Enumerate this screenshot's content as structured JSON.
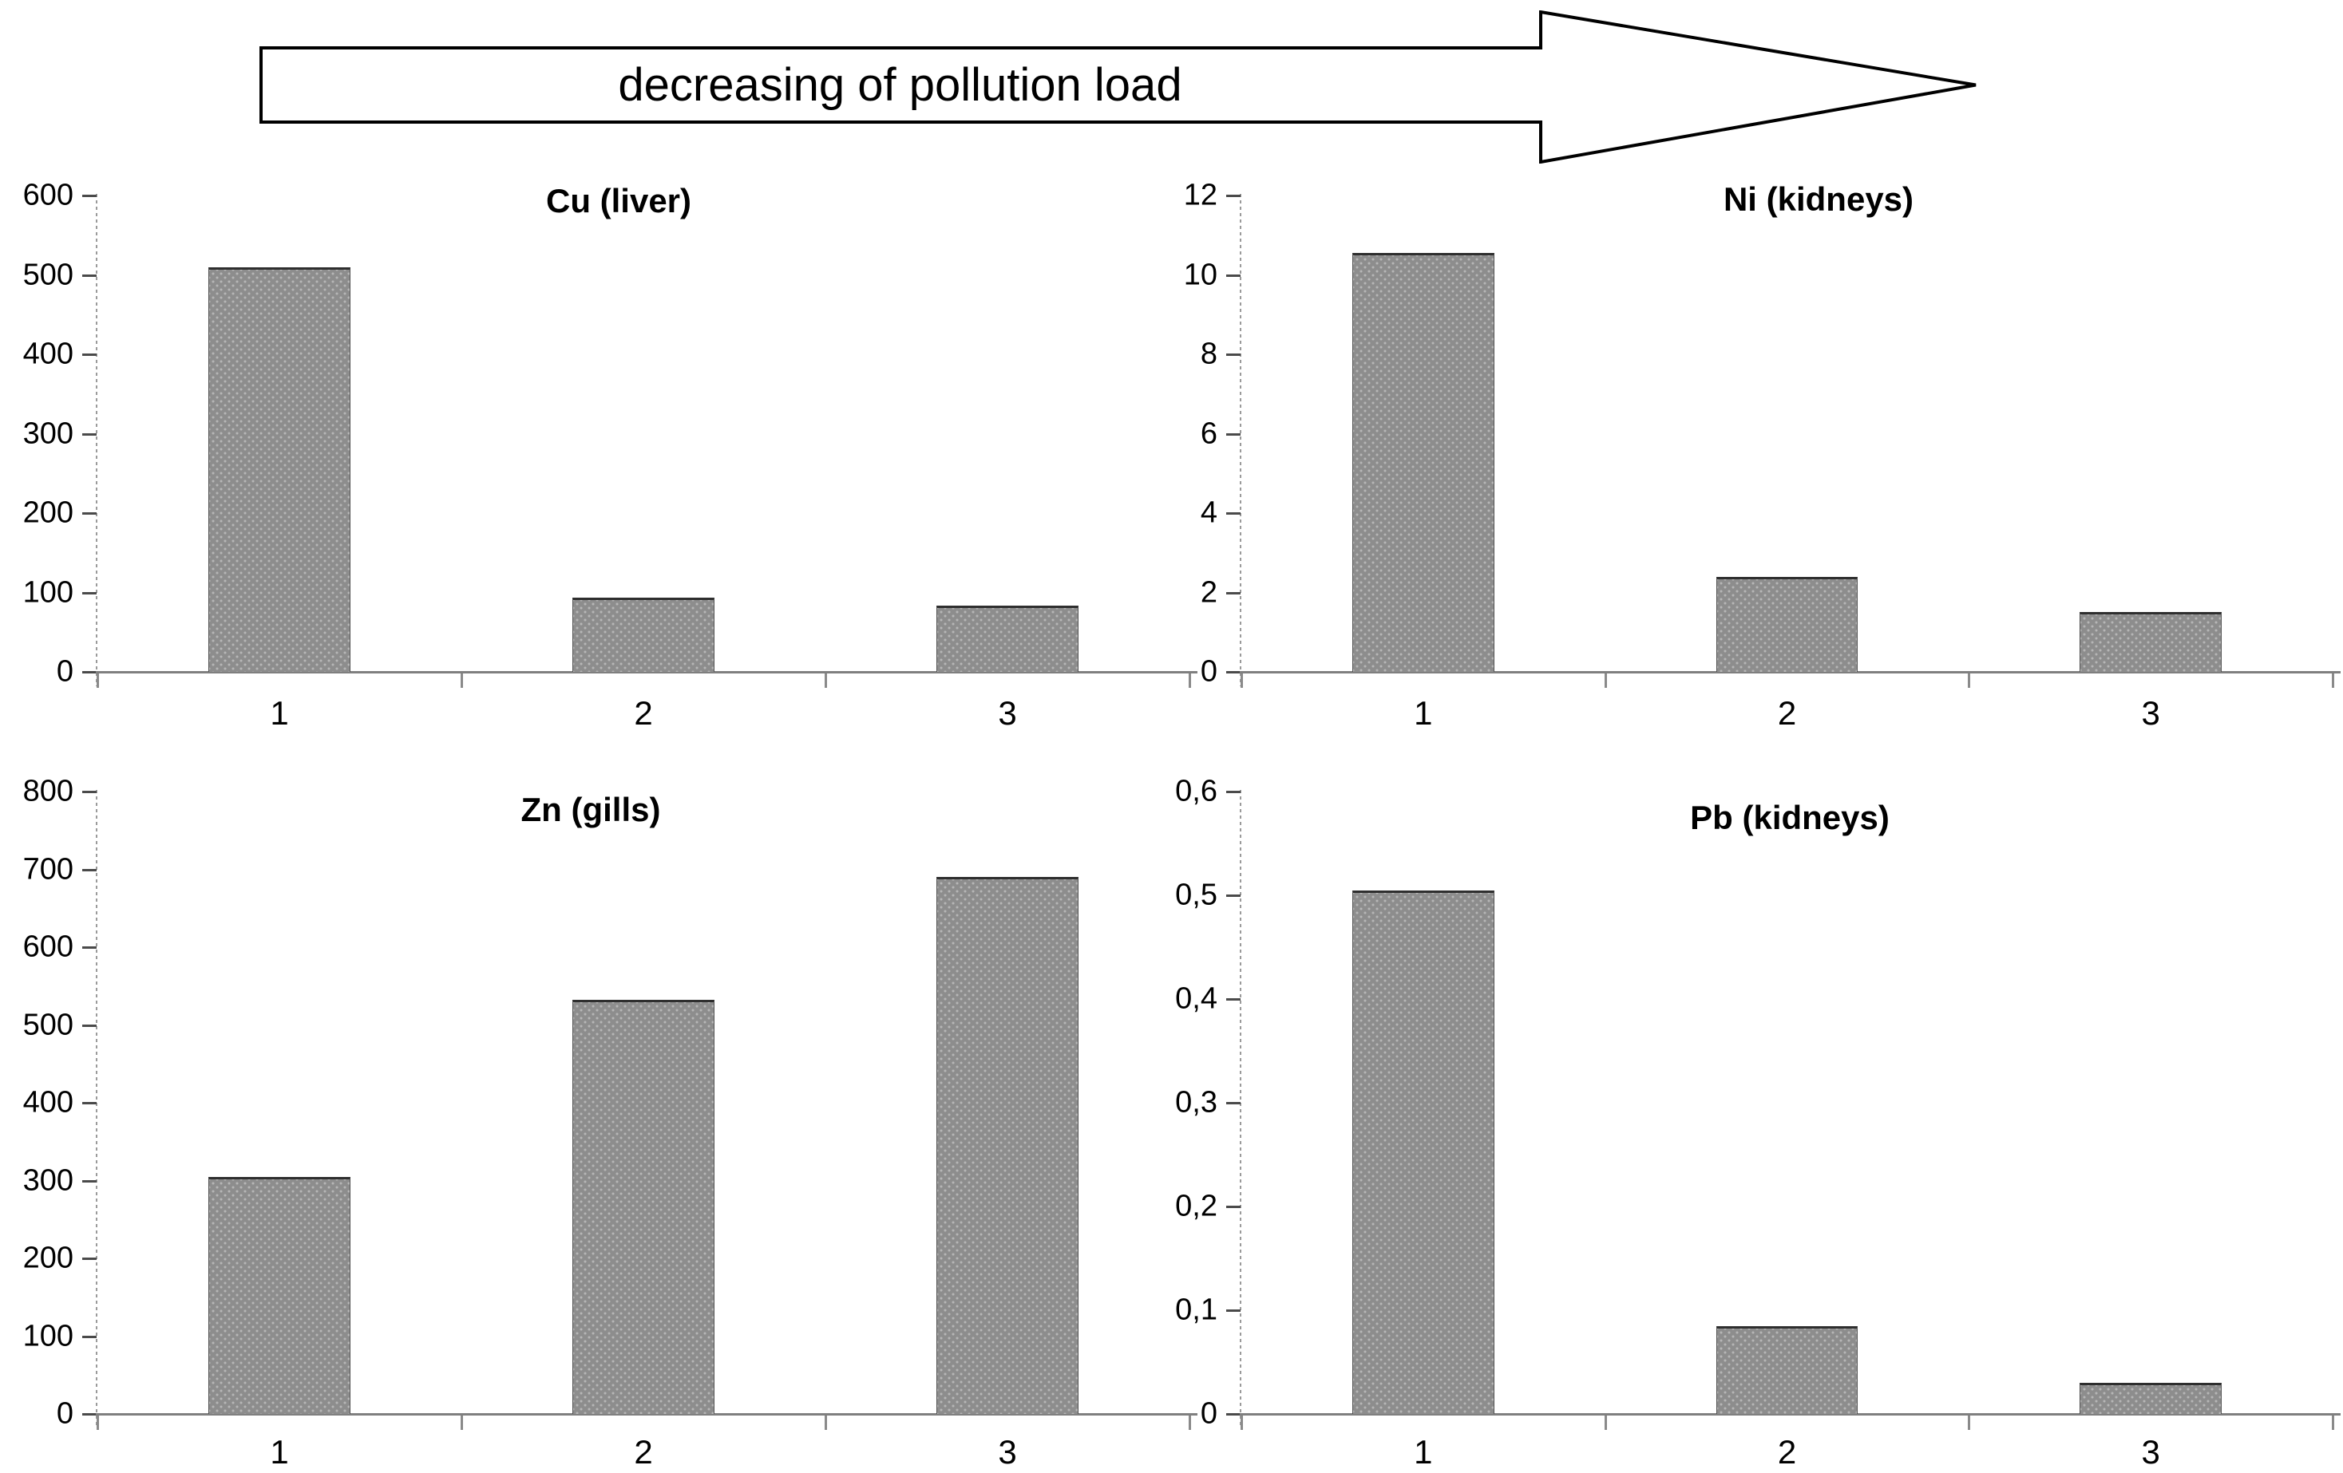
{
  "arrow": {
    "label": "decreasing of pollution load"
  },
  "colors": {
    "bar_fill": "#8d8d8d",
    "bar_dot": "#b6b6b6",
    "bar_border": "#2e2e2e",
    "axis_line": "#7f7f7f",
    "text": "#000000"
  },
  "chart_data": [
    {
      "type": "bar",
      "title": "Cu (liver)",
      "categories": [
        "1",
        "2",
        "3"
      ],
      "values": [
        510,
        93,
        83
      ],
      "xlabel": "",
      "ylabel": "",
      "ylim": [
        0,
        600
      ],
      "ytick_step": 100,
      "ytick_labels": [
        "600",
        "500",
        "400",
        "300",
        "200",
        "100",
        "0"
      ],
      "grid": false,
      "legend": "none"
    },
    {
      "type": "bar",
      "title": "Ni (kidneys)",
      "categories": [
        "1",
        "2",
        "3"
      ],
      "values": [
        10.55,
        2.4,
        1.5
      ],
      "xlabel": "",
      "ylabel": "",
      "ylim": [
        0,
        12
      ],
      "ytick_step": 2,
      "ytick_labels": [
        "12",
        "10",
        "8",
        "6",
        "4",
        "2",
        "0"
      ],
      "grid": false,
      "legend": "none"
    },
    {
      "type": "bar",
      "title": "Zn (gills)",
      "categories": [
        "1",
        "2",
        "3"
      ],
      "values": [
        305,
        532,
        690
      ],
      "xlabel": "",
      "ylabel": "",
      "ylim": [
        0,
        800
      ],
      "ytick_step": 100,
      "ytick_labels": [
        "800",
        "700",
        "600",
        "500",
        "400",
        "300",
        "200",
        "100",
        "0"
      ],
      "grid": false,
      "legend": "none"
    },
    {
      "type": "bar",
      "title": "Pb (kidneys)",
      "categories": [
        "1",
        "2",
        "3"
      ],
      "values": [
        0.505,
        0.085,
        0.03
      ],
      "xlabel": "",
      "ylabel": "",
      "ylim": [
        0,
        0.6
      ],
      "ytick_step": 0.1,
      "ytick_labels": [
        "0,6",
        "0,5",
        "0,4",
        "0,3",
        "0,2",
        "0,1",
        "0"
      ],
      "grid": false,
      "legend": "none"
    }
  ]
}
